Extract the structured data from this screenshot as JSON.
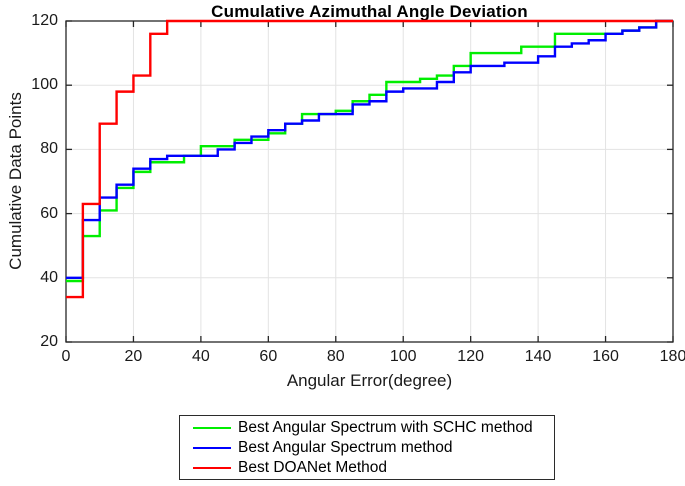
{
  "title": "Cumulative Azimuthal Angle Deviation",
  "chart_data": {
    "type": "line",
    "subtype": "step-cumulative",
    "title": "Cumulative Azimuthal Angle Deviation",
    "xlabel": "Angular Error(degree)",
    "ylabel": "Cumulative Data Points",
    "xlim": [
      0,
      180
    ],
    "ylim": [
      20,
      120
    ],
    "x_ticks": [
      0,
      20,
      40,
      60,
      80,
      100,
      120,
      140,
      160,
      180
    ],
    "y_ticks": [
      20,
      40,
      60,
      80,
      100,
      120
    ],
    "grid": true,
    "legend_position": "below-plot",
    "step_x": [
      0,
      5,
      10,
      15,
      20,
      25,
      30,
      35,
      40,
      45,
      50,
      55,
      60,
      65,
      70,
      75,
      80,
      85,
      90,
      95,
      100,
      105,
      110,
      115,
      120,
      125,
      130,
      135,
      140,
      145,
      150,
      155,
      160,
      165,
      170,
      175
    ],
    "series": [
      {
        "name": "Best Angular Spectrum with SCHC method",
        "color": "#00ee00",
        "values": [
          39,
          53,
          61,
          68,
          73,
          76,
          76,
          78,
          81,
          81,
          83,
          83,
          85,
          88,
          91,
          91,
          92,
          95,
          97,
          101,
          101,
          102,
          103,
          106,
          110,
          110,
          110,
          112,
          112,
          116,
          116,
          116,
          116,
          117,
          118,
          120
        ]
      },
      {
        "name": "Best Angular Spectrum method",
        "color": "#0000ff",
        "values": [
          40,
          58,
          65,
          69,
          74,
          77,
          78,
          78,
          78,
          80,
          82,
          84,
          86,
          88,
          89,
          91,
          91,
          94,
          95,
          98,
          99,
          99,
          101,
          104,
          106,
          106,
          107,
          107,
          109,
          112,
          113,
          114,
          116,
          117,
          118,
          120
        ]
      },
      {
        "name": "Best DOANet Method",
        "color": "#ff0000",
        "values": [
          34,
          63,
          88,
          98,
          103,
          116,
          120,
          120,
          120,
          120,
          120,
          120,
          120,
          120,
          120,
          120,
          120,
          120,
          120,
          120,
          120,
          120,
          120,
          120,
          120,
          120,
          120,
          120,
          120,
          120,
          120,
          120,
          120,
          120,
          120,
          120
        ]
      }
    ],
    "colors": {
      "axis": "#262626",
      "grid": "#e3e3e3",
      "background": "#ffffff"
    }
  }
}
